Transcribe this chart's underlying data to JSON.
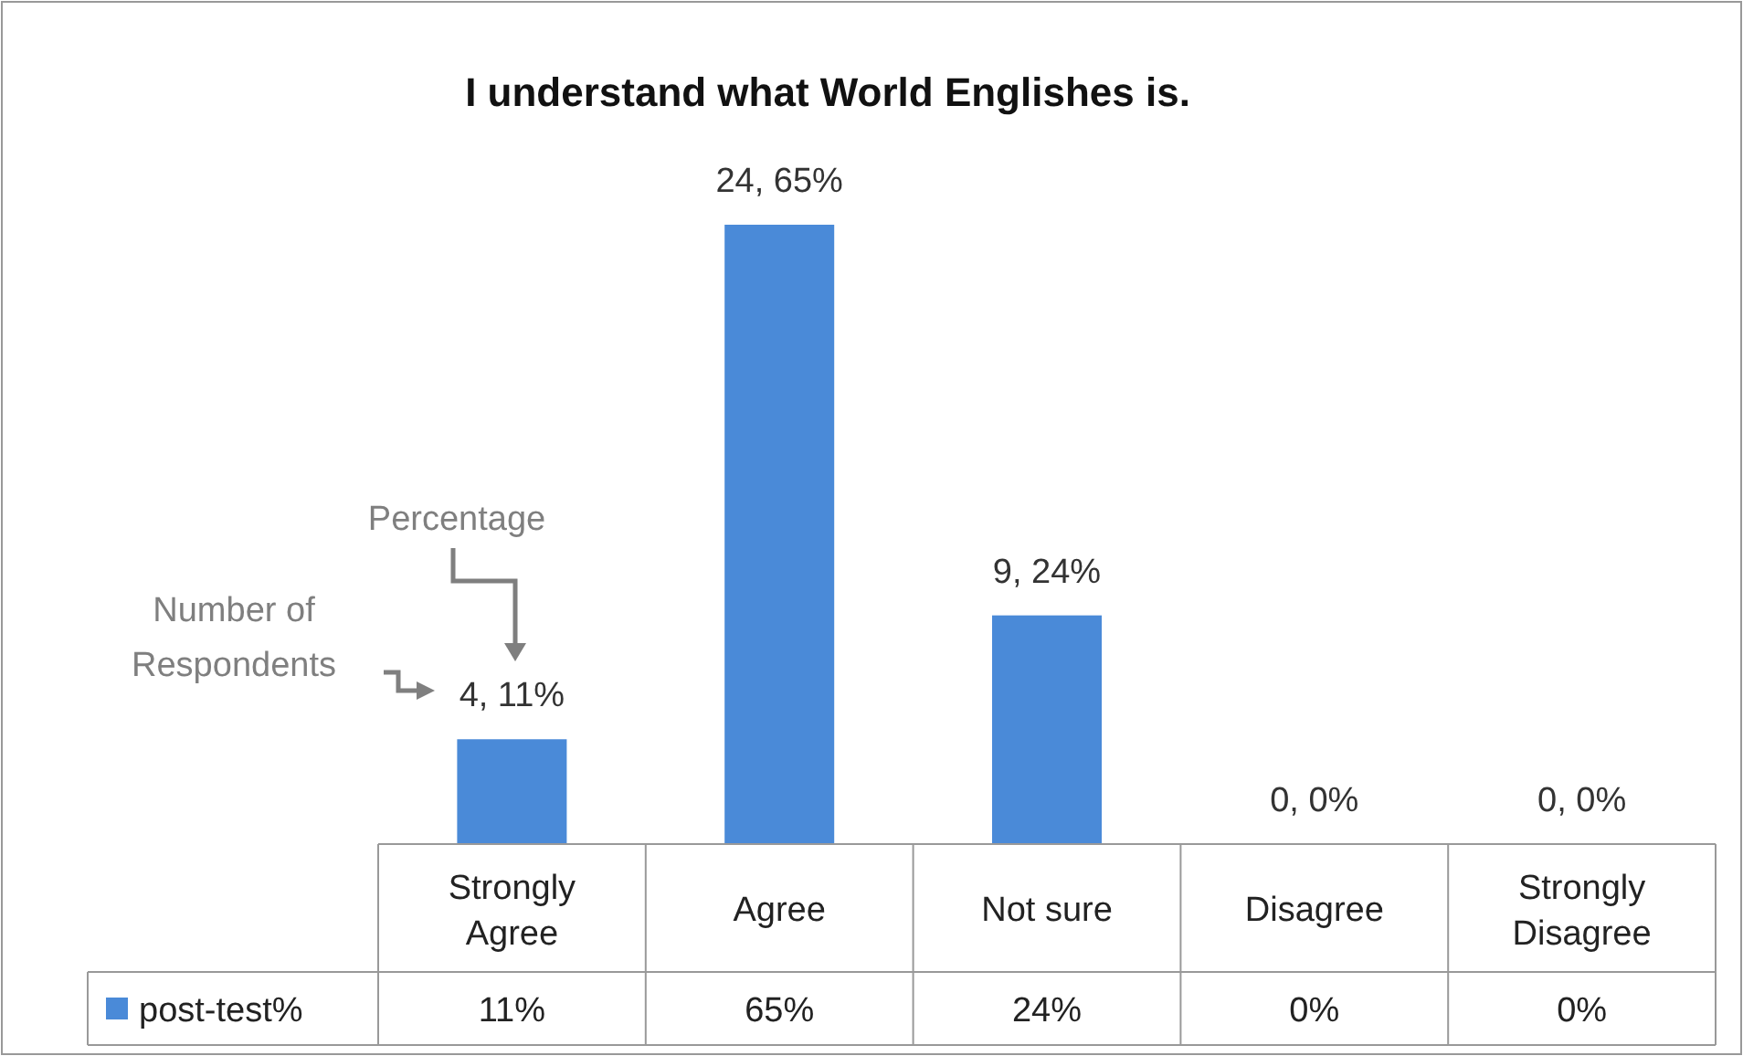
{
  "chart_data": {
    "type": "bar",
    "title": "I understand what World Englishes is.",
    "categories": [
      "Strongly Agree",
      "Agree",
      "Not sure",
      "Disagree",
      "Strongly Disagree"
    ],
    "series": [
      {
        "name": "post-test%",
        "color": "#4a8ad8",
        "values": [
          11,
          65,
          24,
          0,
          0
        ],
        "value_labels": [
          "4, 11%",
          "24, 65%",
          "9, 24%",
          "0, 0%",
          "0, 0%"
        ]
      }
    ],
    "legend": "bottom",
    "annotations": [
      "Percentage",
      "Number of Respondents",
      "11%",
      "65%",
      "24%",
      "0%",
      "0%"
    ]
  }
}
